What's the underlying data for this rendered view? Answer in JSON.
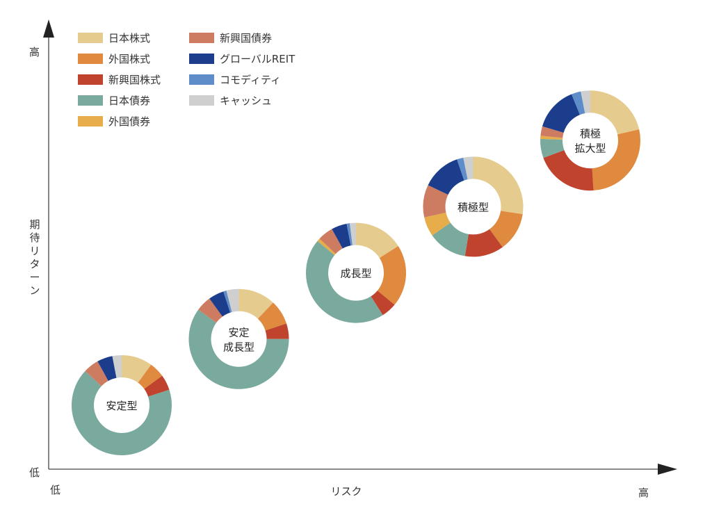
{
  "chart_data": {
    "type": "donut",
    "xlabel": "リスク",
    "ylabel": "期待リターン",
    "x_low": "低",
    "x_high": "高",
    "y_low": "低",
    "y_high": "高",
    "assets": [
      {
        "name": "日本株式",
        "color": "#e5cc8e"
      },
      {
        "name": "外国株式",
        "color": "#df8a3e"
      },
      {
        "name": "新興国株式",
        "color": "#c0432e"
      },
      {
        "name": "日本債券",
        "color": "#7aa99d"
      },
      {
        "name": "外国債券",
        "color": "#e6ad4a"
      },
      {
        "name": "新興国債券",
        "color": "#cd7c62"
      },
      {
        "name": "グローバルREIT",
        "color": "#1b3d8c"
      },
      {
        "name": "コモディティ",
        "color": "#5e8dc9"
      },
      {
        "name": "キャッシュ",
        "color": "#cfcfcf"
      }
    ],
    "portfolios": [
      {
        "label": [
          "安定型"
        ],
        "risk": 1,
        "return": 1,
        "values": [
          10,
          5,
          5,
          67,
          0,
          5,
          5,
          0,
          3
        ]
      },
      {
        "label": [
          "安定",
          "成長型"
        ],
        "risk": 2,
        "return": 2,
        "values": [
          12,
          8,
          5,
          60,
          0,
          5,
          5,
          1,
          4
        ]
      },
      {
        "label": [
          "成長型"
        ],
        "risk": 3,
        "return": 3,
        "values": [
          16,
          20,
          5,
          45,
          1,
          5,
          5,
          1,
          2
        ]
      },
      {
        "label": [
          "積極型"
        ],
        "risk": 4,
        "return": 4,
        "values": [
          26,
          12,
          12,
          12,
          6,
          10,
          12,
          2,
          3
        ]
      },
      {
        "label": [
          "積極",
          "拡大型"
        ],
        "risk": 5,
        "return": 5,
        "values": [
          21,
          27,
          20,
          6,
          1,
          3,
          14,
          3,
          3
        ]
      }
    ]
  }
}
